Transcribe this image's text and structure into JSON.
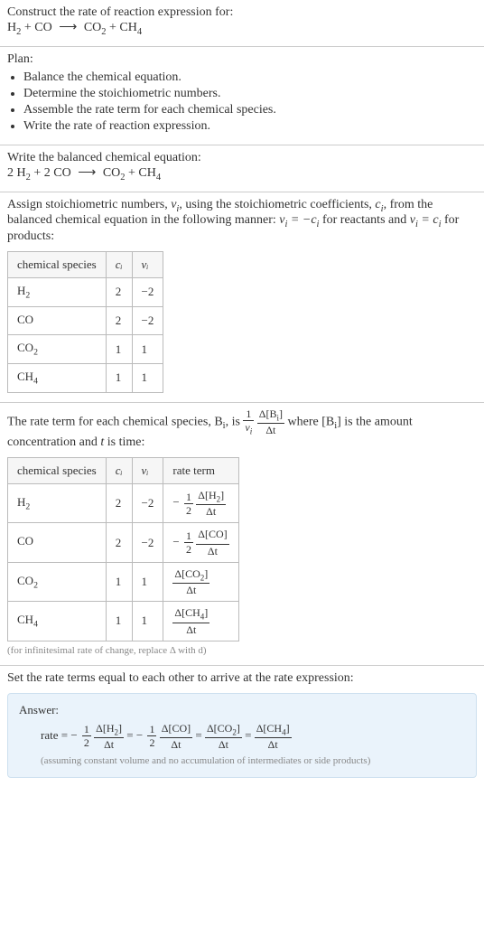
{
  "intro": {
    "prompt": "Construct the rate of reaction expression for:",
    "reactant1": "H",
    "reactant1_sub": "2",
    "plus1": " + ",
    "reactant2": "CO",
    "arrow": "⟶",
    "product1": "CO",
    "product1_sub": "2",
    "plus2": " + ",
    "product2": "CH",
    "product2_sub": "4"
  },
  "plan": {
    "title": "Plan:",
    "items": [
      "Balance the chemical equation.",
      "Determine the stoichiometric numbers.",
      "Assemble the rate term for each chemical species.",
      "Write the rate of reaction expression."
    ]
  },
  "balanced": {
    "title": "Write the balanced chemical equation:",
    "c1": "2 H",
    "c1_sub": "2",
    "plus1": " + ",
    "c2": "2 CO",
    "arrow": "⟶",
    "p1": "CO",
    "p1_sub": "2",
    "plus2": " + ",
    "p2": "CH",
    "p2_sub": "4"
  },
  "stoich": {
    "text_a": "Assign stoichiometric numbers, ",
    "nu_i": "ν",
    "nu_i_sub": "i",
    "text_b": ", using the stoichiometric coefficients, ",
    "c_i": "c",
    "c_i_sub": "i",
    "text_c": ", from the balanced chemical equation in the following manner: ",
    "rel_reactants_a": "ν",
    "rel_reactants_sub": "i",
    "rel_reactants_b": " = −c",
    "rel_reactants_bsub": "i",
    "text_d": " for reactants and ",
    "rel_products_a": "ν",
    "rel_products_sub": "i",
    "rel_products_b": " = c",
    "rel_products_bsub": "i",
    "text_e": " for products:",
    "table": {
      "headers": {
        "species": "chemical species",
        "ci": "cᵢ",
        "nui": "νᵢ"
      },
      "rows": [
        {
          "species_a": "H",
          "species_sub": "2",
          "ci": "2",
          "nui": "−2"
        },
        {
          "species_a": "CO",
          "species_sub": "",
          "ci": "2",
          "nui": "−2"
        },
        {
          "species_a": "CO",
          "species_sub": "2",
          "ci": "1",
          "nui": "1"
        },
        {
          "species_a": "CH",
          "species_sub": "4",
          "ci": "1",
          "nui": "1"
        }
      ]
    }
  },
  "rateterm": {
    "text_a": "The rate term for each chemical species, B",
    "text_a_sub": "i",
    "text_b": ", is ",
    "frac1_num": "1",
    "frac1_den_a": "ν",
    "frac1_den_sub": "i",
    "frac2_num_a": "Δ[B",
    "frac2_num_sub": "i",
    "frac2_num_b": "]",
    "frac2_den": "Δt",
    "text_c": " where [B",
    "text_c_sub": "i",
    "text_d": "] is the amount concentration and ",
    "t_ital": "t",
    "text_e": " is time:",
    "table": {
      "headers": {
        "species": "chemical species",
        "ci": "cᵢ",
        "nui": "νᵢ",
        "rate": "rate term"
      },
      "rows": [
        {
          "species_a": "H",
          "species_sub": "2",
          "ci": "2",
          "nui": "−2",
          "rate_neg": "−",
          "rate_coef_num": "1",
          "rate_coef_den": "2",
          "rate_num_a": "Δ[H",
          "rate_num_sub": "2",
          "rate_num_b": "]",
          "rate_den": "Δt"
        },
        {
          "species_a": "CO",
          "species_sub": "",
          "ci": "2",
          "nui": "−2",
          "rate_neg": "−",
          "rate_coef_num": "1",
          "rate_coef_den": "2",
          "rate_num_a": "Δ[CO]",
          "rate_num_sub": "",
          "rate_num_b": "",
          "rate_den": "Δt"
        },
        {
          "species_a": "CO",
          "species_sub": "2",
          "ci": "1",
          "nui": "1",
          "rate_neg": "",
          "rate_coef_num": "",
          "rate_coef_den": "",
          "rate_num_a": "Δ[CO",
          "rate_num_sub": "2",
          "rate_num_b": "]",
          "rate_den": "Δt"
        },
        {
          "species_a": "CH",
          "species_sub": "4",
          "ci": "1",
          "nui": "1",
          "rate_neg": "",
          "rate_coef_num": "",
          "rate_coef_den": "",
          "rate_num_a": "Δ[CH",
          "rate_num_sub": "4",
          "rate_num_b": "]",
          "rate_den": "Δt"
        }
      ]
    },
    "caption": "(for infinitesimal rate of change, replace Δ with d)"
  },
  "final": {
    "title": "Set the rate terms equal to each other to arrive at the rate expression:",
    "answer_label": "Answer:",
    "rate_word": "rate = ",
    "eq": " = ",
    "terms": [
      {
        "neg": "−",
        "coef_num": "1",
        "coef_den": "2",
        "num_a": "Δ[H",
        "num_sub": "2",
        "num_b": "]",
        "den": "Δt"
      },
      {
        "neg": "−",
        "coef_num": "1",
        "coef_den": "2",
        "num_a": "Δ[CO]",
        "num_sub": "",
        "num_b": "",
        "den": "Δt"
      },
      {
        "neg": "",
        "coef_num": "",
        "coef_den": "",
        "num_a": "Δ[CO",
        "num_sub": "2",
        "num_b": "]",
        "den": "Δt"
      },
      {
        "neg": "",
        "coef_num": "",
        "coef_den": "",
        "num_a": "Δ[CH",
        "num_sub": "4",
        "num_b": "]",
        "den": "Δt"
      }
    ],
    "assume": "(assuming constant volume and no accumulation of intermediates or side products)"
  }
}
